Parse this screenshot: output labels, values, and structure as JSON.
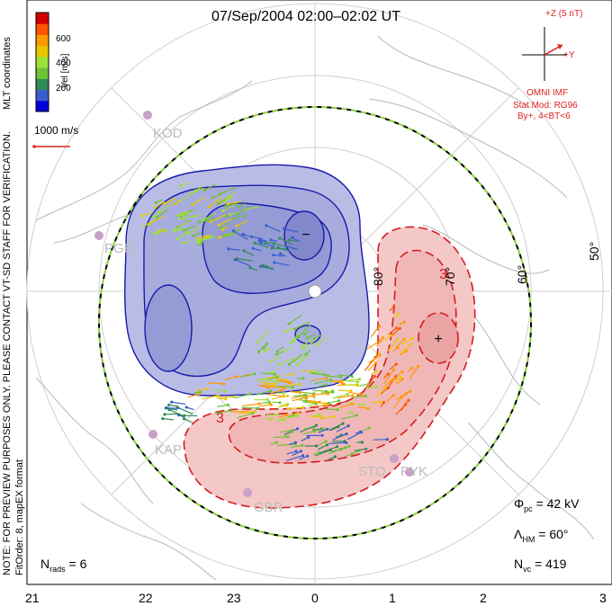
{
  "title": "07/Sep/2004 02:00–02:02 UT",
  "side_label": "MLT coordinates",
  "notes": [
    "NOTE: FOR PREVIEW PURPOSES ONLY. PLEASE CONTACT VT-SD STAFF FOR VERIFICATION.",
    "FitOrder: 8, mapEX format"
  ],
  "colorbar": {
    "label": "Vel [m/s]",
    "ticks": [
      "600",
      "400",
      "200"
    ],
    "colors": [
      "#0000dd",
      "#3a5fcd",
      "#2e8b57",
      "#6fc236",
      "#9ee03a",
      "#e8c800",
      "#ff9900",
      "#ff5500",
      "#d40000"
    ]
  },
  "vector_scale": "1000 m/s",
  "imf": {
    "z_label": "+Z (5 nT)",
    "y_label": "+Y",
    "source": "OMNI IMF",
    "model": "Stat Mod: RG96",
    "conditions": "By+, 4<BT<6"
  },
  "stats": {
    "phi_sym": "Φ",
    "phi_sub": "pc",
    "phi_val": " = 42 kV",
    "lam_sym": "Λ",
    "lam_sub": "HM",
    "lam_val": " = 60°",
    "nvc_sym": "N",
    "nvc_sub": "vc",
    "nvc_val": " = 419",
    "nrads_sym": "N",
    "nrads_sub": "rads",
    "nrads_val": " = 6"
  },
  "mlt_axis": [
    "21",
    "22",
    "23",
    "0",
    "1",
    "2",
    "3"
  ],
  "lat_labels": [
    "50°",
    "60°",
    "70°",
    "80°"
  ],
  "stations": [
    "KOD",
    "PGR",
    "KAP",
    "GBR",
    "STO",
    "PYK"
  ],
  "extrema": {
    "min": "−",
    "max": "+"
  },
  "contour_label": "3",
  "colors": {
    "negative_contour": "#1a1aaa",
    "positive_contour": "#d41c1c",
    "negative_fill": "#b9bde6",
    "positive_fill": "#f5c8c8"
  }
}
